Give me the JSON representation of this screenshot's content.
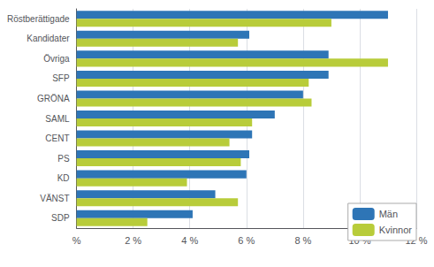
{
  "chart_data": {
    "type": "bar",
    "orientation": "horizontal",
    "categories": [
      "Röstberättigade",
      "Kandidater",
      "Övriga",
      "SFP",
      "GRÖNA",
      "SAML",
      "CENT",
      "PS",
      "KD",
      "VÄNST",
      "SDP"
    ],
    "series": [
      {
        "name": "Män",
        "color": "#2e75b6",
        "values": [
          11.0,
          6.1,
          8.9,
          8.9,
          8.0,
          7.0,
          6.2,
          6.1,
          6.0,
          4.9,
          4.1
        ]
      },
      {
        "name": "Kvinnor",
        "color": "#b8cc3a",
        "values": [
          9.0,
          5.7,
          11.0,
          8.2,
          8.3,
          6.2,
          5.4,
          5.8,
          3.9,
          5.7,
          2.5
        ]
      }
    ],
    "xlim": [
      0,
      12
    ],
    "xticks": [
      {
        "value": 0,
        "label": "%"
      },
      {
        "value": 2,
        "label": "2 %"
      },
      {
        "value": 4,
        "label": "4 %"
      },
      {
        "value": 6,
        "label": "6 %"
      },
      {
        "value": 8,
        "label": "8 %"
      },
      {
        "value": 10,
        "label": "10 %"
      },
      {
        "value": 12,
        "label": "12 %"
      }
    ],
    "grid": true,
    "legend": "lower right"
  }
}
